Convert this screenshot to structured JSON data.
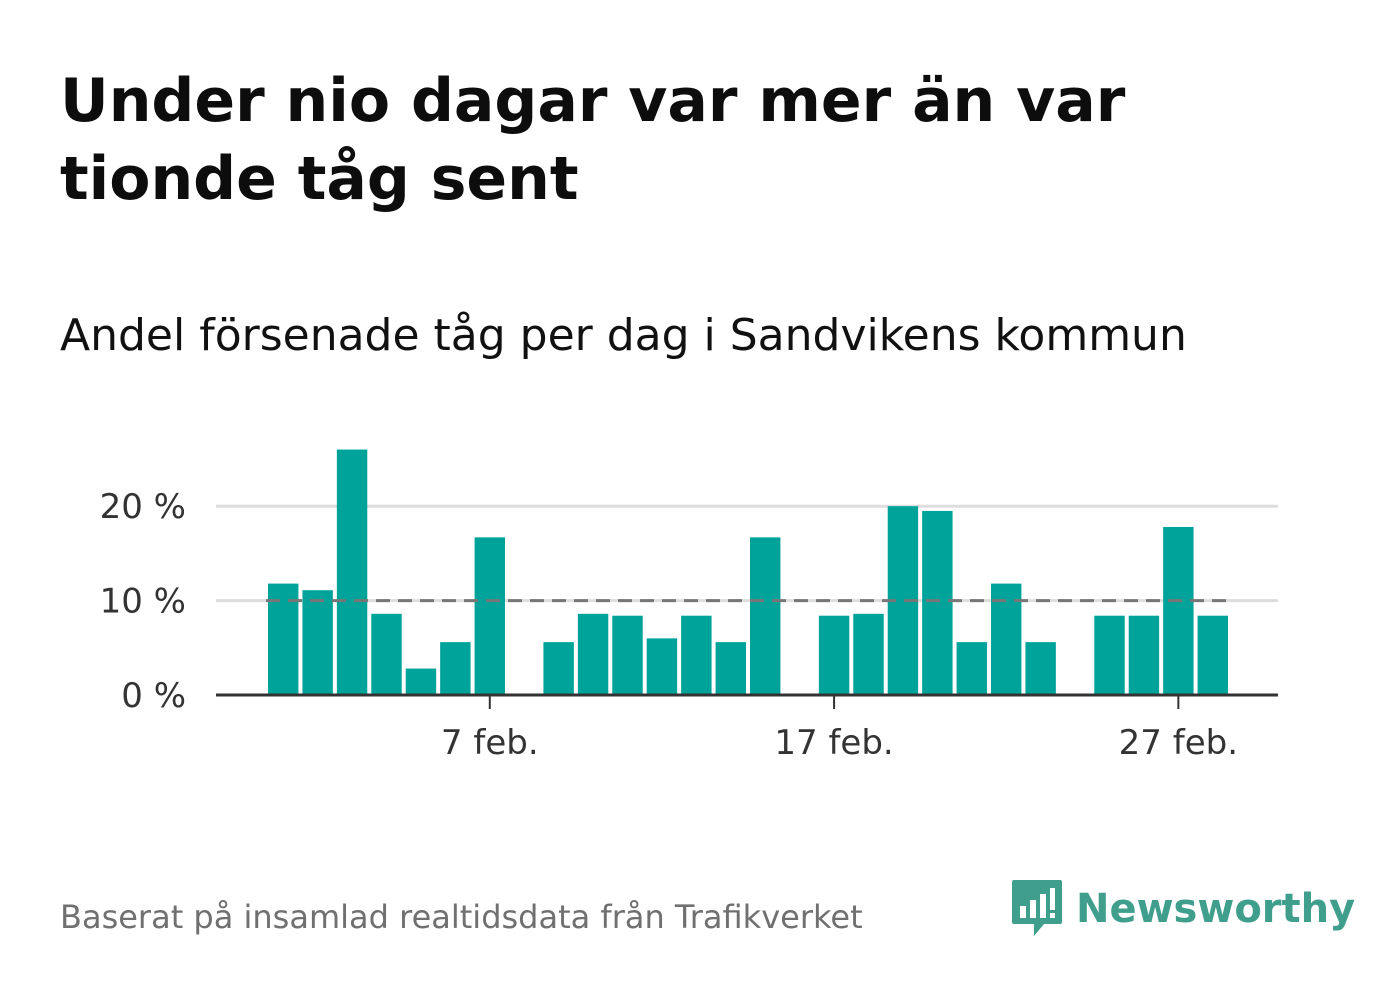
{
  "title": "Under nio dagar var mer än var tionde tåg sent",
  "subtitle": "Andel försenade tåg per dag i Sandvikens kommun",
  "footer": {
    "source": "Baserat på insamlad realtidsdata från Trafikverket",
    "brand": "Newsworthy"
  },
  "colors": {
    "bar": "#00a39a",
    "reference_line": "#777777",
    "grid": "#dddddd",
    "axis": "#333333",
    "brand": "#3f9e8c"
  },
  "icons": {
    "logo": "bar-chart-speech-bubble-icon"
  },
  "chart_data": {
    "type": "bar",
    "x_start_day": 0,
    "x_end_day": 27,
    "days": [
      1,
      2,
      3,
      4,
      5,
      6,
      7,
      8,
      9,
      10,
      11,
      12,
      13,
      14,
      15,
      16,
      17,
      18,
      19,
      20,
      21,
      22,
      23,
      24,
      25,
      26,
      27,
      28
    ],
    "values": [
      11.8,
      11.1,
      26.0,
      8.6,
      2.8,
      5.6,
      16.7,
      null,
      5.6,
      8.6,
      8.4,
      6.0,
      8.4,
      5.6,
      16.7,
      null,
      8.4,
      8.6,
      20.0,
      19.5,
      5.6,
      11.8,
      5.6,
      null,
      8.4,
      8.4,
      17.8,
      8.4
    ],
    "reference_value": 10,
    "y_ticks": [
      0,
      10,
      20
    ],
    "y_tick_labels": [
      "0 %",
      "10 %",
      "20 %"
    ],
    "ylim": [
      0,
      26
    ],
    "x_ticks": [
      7,
      17,
      27
    ],
    "x_tick_labels": [
      "7 feb.",
      "17 feb.",
      "27 feb."
    ],
    "grid": true,
    "xlabel": "",
    "ylabel": ""
  }
}
